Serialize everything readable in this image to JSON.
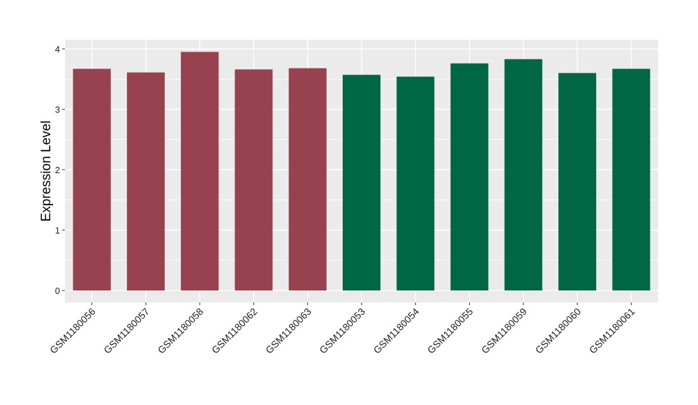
{
  "chart_data": {
    "type": "bar",
    "title": "",
    "xlabel": "",
    "ylabel": "Expression Level",
    "ylim": [
      -0.2,
      4.05
    ],
    "yticks": [
      0,
      1,
      2,
      3,
      4
    ],
    "grid": true,
    "categories": [
      "GSM1180056",
      "GSM1180057",
      "GSM1180058",
      "GSM1180062",
      "GSM1180063",
      "GSM1180053",
      "GSM1180054",
      "GSM1180055",
      "GSM1180059",
      "GSM1180060",
      "GSM1180061"
    ],
    "values": [
      3.67,
      3.61,
      3.95,
      3.66,
      3.68,
      3.57,
      3.54,
      3.76,
      3.83,
      3.6,
      3.67
    ],
    "groups": [
      0,
      0,
      0,
      0,
      0,
      1,
      1,
      1,
      1,
      1,
      1
    ],
    "group_colors": [
      "#98414f",
      "#006643"
    ],
    "panel_color": "#ebebeb",
    "grid_color": "#ffffff"
  }
}
